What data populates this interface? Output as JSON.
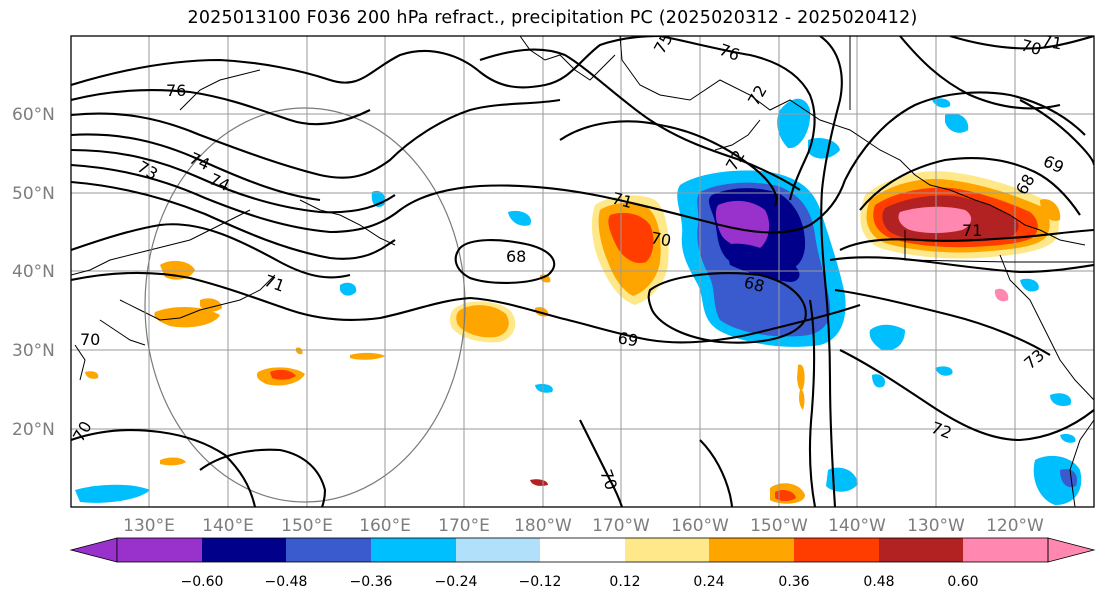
{
  "title": "2025013100 F036 200 hPa refract., precipitation PC (2025020312 - 2025020412)",
  "lat_labels": [
    "60°N",
    "50°N",
    "40°N",
    "30°N",
    "20°N"
  ],
  "lon_labels": [
    "130°E",
    "140°E",
    "150°E",
    "160°E",
    "170°E",
    "180°W",
    "170°W",
    "160°W",
    "150°W",
    "140°W",
    "130°W",
    "120°W"
  ],
  "colorbar": {
    "colors": [
      "#9932cc",
      "#00008b",
      "#3a5bcd",
      "#00bfff",
      "#b0e0fa",
      "#ffffff",
      "#ffe88a",
      "#ffa500",
      "#ff3d00",
      "#b22222",
      "#ff87b0"
    ],
    "ticks": [
      "−0.60",
      "−0.48",
      "−0.36",
      "−0.24",
      "−0.12",
      "0.12",
      "0.24",
      "0.36",
      "0.48",
      "0.60"
    ]
  },
  "contour_labels": [
    "76",
    "76",
    "75",
    "73",
    "74",
    "74",
    "72",
    "71",
    "71",
    "71",
    "70",
    "70",
    "68",
    "68",
    "69",
    "69",
    "72",
    "73",
    "70",
    "70",
    "70",
    "72",
    "68",
    "71"
  ]
}
